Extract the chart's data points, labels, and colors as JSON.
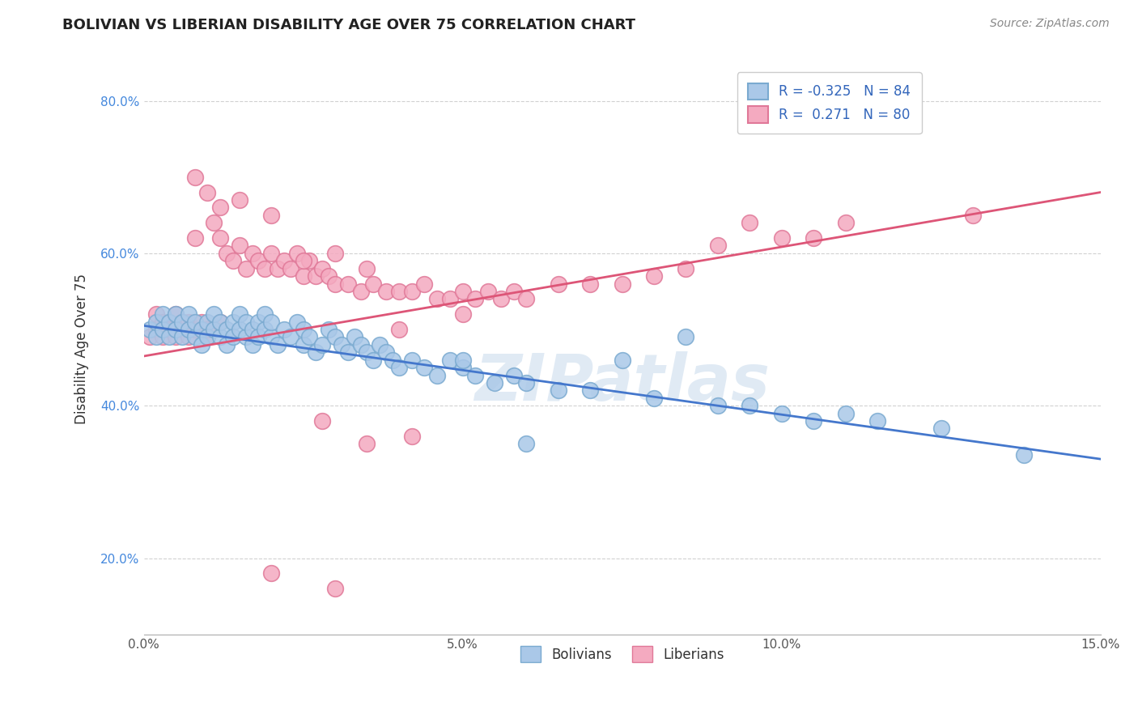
{
  "title": "BOLIVIAN VS LIBERIAN DISABILITY AGE OVER 75 CORRELATION CHART",
  "source_text": "Source: ZipAtlas.com",
  "ylabel": "Disability Age Over 75",
  "xmin": 0.0,
  "xmax": 0.15,
  "ymin": 0.1,
  "ymax": 0.85,
  "x_ticks": [
    0.0,
    0.05,
    0.1,
    0.15
  ],
  "x_tick_labels": [
    "0.0%",
    "5.0%",
    "10.0%",
    "15.0%"
  ],
  "y_ticks": [
    0.2,
    0.4,
    0.6,
    0.8
  ],
  "y_tick_labels": [
    "20.0%",
    "40.0%",
    "60.0%",
    "80.0%"
  ],
  "bolivian_color": "#aac8e8",
  "liberian_color": "#f4aac0",
  "bolivian_edge": "#7aaad0",
  "liberian_edge": "#e07898",
  "trend_blue": "#4477cc",
  "trend_pink": "#dd5577",
  "R_bolivian": -0.325,
  "N_bolivian": 84,
  "R_liberian": 0.271,
  "N_liberian": 80,
  "grid_color": "#cccccc",
  "background_color": "#ffffff",
  "watermark_text": "ZIPatlas",
  "legend_labels": [
    "Bolivians",
    "Liberians"
  ],
  "blue_trend_x0": 0.0,
  "blue_trend_y0": 0.505,
  "blue_trend_x1": 0.15,
  "blue_trend_y1": 0.33,
  "pink_trend_x0": 0.0,
  "pink_trend_y0": 0.465,
  "pink_trend_x1": 0.15,
  "pink_trend_y1": 0.68,
  "bolivian_points_x": [
    0.001,
    0.002,
    0.002,
    0.003,
    0.003,
    0.004,
    0.004,
    0.005,
    0.005,
    0.006,
    0.006,
    0.007,
    0.007,
    0.008,
    0.008,
    0.009,
    0.009,
    0.01,
    0.01,
    0.011,
    0.011,
    0.012,
    0.012,
    0.013,
    0.013,
    0.014,
    0.014,
    0.015,
    0.015,
    0.016,
    0.016,
    0.017,
    0.017,
    0.018,
    0.018,
    0.019,
    0.019,
    0.02,
    0.02,
    0.021,
    0.022,
    0.023,
    0.024,
    0.025,
    0.025,
    0.026,
    0.027,
    0.028,
    0.029,
    0.03,
    0.031,
    0.032,
    0.033,
    0.034,
    0.035,
    0.036,
    0.037,
    0.038,
    0.039,
    0.04,
    0.042,
    0.044,
    0.046,
    0.048,
    0.05,
    0.052,
    0.055,
    0.058,
    0.06,
    0.065,
    0.07,
    0.08,
    0.09,
    0.095,
    0.1,
    0.105,
    0.11,
    0.115,
    0.125,
    0.138,
    0.085,
    0.075,
    0.06,
    0.05
  ],
  "bolivian_points_y": [
    0.5,
    0.49,
    0.51,
    0.5,
    0.52,
    0.49,
    0.51,
    0.5,
    0.52,
    0.49,
    0.51,
    0.5,
    0.52,
    0.49,
    0.51,
    0.5,
    0.48,
    0.51,
    0.49,
    0.5,
    0.52,
    0.49,
    0.51,
    0.5,
    0.48,
    0.51,
    0.49,
    0.5,
    0.52,
    0.49,
    0.51,
    0.5,
    0.48,
    0.51,
    0.49,
    0.5,
    0.52,
    0.49,
    0.51,
    0.48,
    0.5,
    0.49,
    0.51,
    0.48,
    0.5,
    0.49,
    0.47,
    0.48,
    0.5,
    0.49,
    0.48,
    0.47,
    0.49,
    0.48,
    0.47,
    0.46,
    0.48,
    0.47,
    0.46,
    0.45,
    0.46,
    0.45,
    0.44,
    0.46,
    0.45,
    0.44,
    0.43,
    0.44,
    0.43,
    0.42,
    0.42,
    0.41,
    0.4,
    0.4,
    0.39,
    0.38,
    0.39,
    0.38,
    0.37,
    0.335,
    0.49,
    0.46,
    0.35,
    0.46
  ],
  "liberian_points_x": [
    0.001,
    0.002,
    0.002,
    0.003,
    0.003,
    0.004,
    0.004,
    0.005,
    0.005,
    0.006,
    0.006,
    0.007,
    0.007,
    0.008,
    0.008,
    0.009,
    0.01,
    0.01,
    0.011,
    0.012,
    0.012,
    0.013,
    0.014,
    0.015,
    0.016,
    0.017,
    0.018,
    0.019,
    0.02,
    0.021,
    0.022,
    0.023,
    0.024,
    0.025,
    0.026,
    0.027,
    0.028,
    0.029,
    0.03,
    0.032,
    0.034,
    0.036,
    0.038,
    0.04,
    0.042,
    0.044,
    0.046,
    0.048,
    0.05,
    0.052,
    0.054,
    0.056,
    0.058,
    0.06,
    0.065,
    0.07,
    0.075,
    0.08,
    0.085,
    0.09,
    0.008,
    0.01,
    0.012,
    0.015,
    0.02,
    0.025,
    0.03,
    0.035,
    0.04,
    0.05,
    0.028,
    0.035,
    0.042,
    0.02,
    0.03,
    0.1,
    0.11,
    0.105,
    0.095,
    0.13
  ],
  "liberian_points_y": [
    0.49,
    0.5,
    0.52,
    0.49,
    0.51,
    0.51,
    0.5,
    0.52,
    0.49,
    0.51,
    0.5,
    0.49,
    0.51,
    0.62,
    0.5,
    0.51,
    0.49,
    0.5,
    0.64,
    0.62,
    0.51,
    0.6,
    0.59,
    0.61,
    0.58,
    0.6,
    0.59,
    0.58,
    0.6,
    0.58,
    0.59,
    0.58,
    0.6,
    0.57,
    0.59,
    0.57,
    0.58,
    0.57,
    0.56,
    0.56,
    0.55,
    0.56,
    0.55,
    0.55,
    0.55,
    0.56,
    0.54,
    0.54,
    0.55,
    0.54,
    0.55,
    0.54,
    0.55,
    0.54,
    0.56,
    0.56,
    0.56,
    0.57,
    0.58,
    0.61,
    0.7,
    0.68,
    0.66,
    0.67,
    0.65,
    0.59,
    0.6,
    0.58,
    0.5,
    0.52,
    0.38,
    0.35,
    0.36,
    0.18,
    0.16,
    0.62,
    0.64,
    0.62,
    0.64,
    0.65
  ]
}
